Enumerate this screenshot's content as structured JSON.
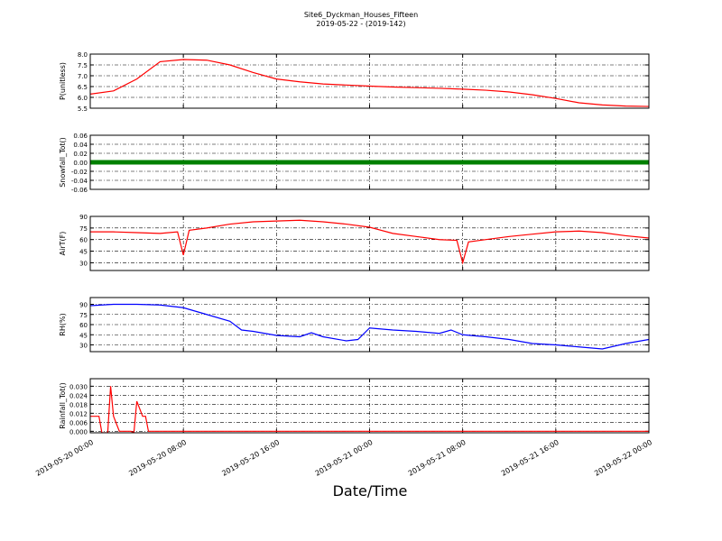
{
  "figure": {
    "title": "Site6_Dyckman_Houses_Fifteen",
    "subtitle": "2019-05-22 - (2019-142)",
    "xlabel": "Date/Time",
    "xlim": [
      "2019-05-20 00:00",
      "2019-05-22 00:00"
    ],
    "xticks": [
      "2019-05-20 00:00",
      "2019-05-20 08:00",
      "2019-05-20 16:00",
      "2019-05-21 00:00",
      "2019-05-21 08:00",
      "2019-05-21 16:00",
      "2019-05-22 00:00"
    ]
  },
  "chart_data": [
    {
      "type": "line",
      "ylabel": "P(unitless)",
      "color": "#ff0000",
      "x": [
        "2019-05-20 00:00",
        "2019-05-20 02:00",
        "2019-05-20 04:00",
        "2019-05-20 06:00",
        "2019-05-20 08:00",
        "2019-05-20 10:00",
        "2019-05-20 12:00",
        "2019-05-20 14:00",
        "2019-05-20 16:00",
        "2019-05-20 18:00",
        "2019-05-20 20:00",
        "2019-05-20 22:00",
        "2019-05-21 00:00",
        "2019-05-21 02:00",
        "2019-05-21 04:00",
        "2019-05-21 06:00",
        "2019-05-21 08:00",
        "2019-05-21 10:00",
        "2019-05-21 12:00",
        "2019-05-21 14:00",
        "2019-05-21 16:00",
        "2019-05-21 18:00",
        "2019-05-21 20:00",
        "2019-05-21 22:00",
        "2019-05-22 00:00"
      ],
      "values": [
        6.15,
        6.3,
        6.85,
        7.65,
        7.75,
        7.72,
        7.5,
        7.15,
        6.85,
        6.72,
        6.62,
        6.57,
        6.52,
        6.48,
        6.45,
        6.42,
        6.38,
        6.33,
        6.25,
        6.12,
        5.95,
        5.75,
        5.65,
        5.6,
        5.58
      ],
      "ylim": [
        5.5,
        8.0
      ],
      "yticks": [
        5.5,
        {
          "value": 6,
          "label": "6.0"
        },
        6.5,
        {
          "value": 7,
          "label": "7.0"
        },
        7.5,
        {
          "value": 8,
          "label": "8.0"
        }
      ]
    },
    {
      "type": "line",
      "ylabel": "Snowfall_Tot()",
      "color": "#008000",
      "x": [
        "2019-05-20 00:00",
        "2019-05-20 08:00",
        "2019-05-20 16:00",
        "2019-05-21 00:00",
        "2019-05-21 08:00",
        "2019-05-21 16:00",
        "2019-05-22 00:00"
      ],
      "values": [
        0,
        0,
        0,
        0,
        0,
        0,
        0
      ],
      "ylim": [
        -0.06,
        0.06
      ],
      "yticks": [
        -0.06,
        -0.04,
        -0.02,
        {
          "value": 0,
          "label": "0.00"
        },
        0.02,
        0.04,
        0.06
      ]
    },
    {
      "type": "line",
      "ylabel": "AirT(F)",
      "color": "#ff0000",
      "x": [
        "2019-05-20 00:00",
        "2019-05-20 02:00",
        "2019-05-20 04:00",
        "2019-05-20 06:00",
        "2019-05-20 07:30",
        "2019-05-20 08:00",
        "2019-05-20 08:30",
        "2019-05-20 10:00",
        "2019-05-20 12:00",
        "2019-05-20 14:00",
        "2019-05-20 16:00",
        "2019-05-20 18:00",
        "2019-05-20 20:00",
        "2019-05-20 22:00",
        "2019-05-21 00:00",
        "2019-05-21 02:00",
        "2019-05-21 04:00",
        "2019-05-21 06:00",
        "2019-05-21 07:30",
        "2019-05-21 08:00",
        "2019-05-21 08:30",
        "2019-05-21 10:00",
        "2019-05-21 12:00",
        "2019-05-21 14:00",
        "2019-05-21 16:00",
        "2019-05-21 18:00",
        "2019-05-21 20:00",
        "2019-05-21 22:00",
        "2019-05-22 00:00"
      ],
      "values": [
        70,
        70,
        69,
        68,
        70,
        40,
        72,
        75,
        80,
        83,
        84,
        85,
        83,
        80,
        76,
        68,
        64,
        60,
        59,
        30,
        57,
        60,
        64,
        67,
        70,
        71,
        69,
        65,
        62
      ],
      "ylim": [
        20,
        90
      ],
      "yticks": [
        30,
        45,
        60,
        75,
        90
      ]
    },
    {
      "type": "line",
      "ylabel": "RH(%)",
      "color": "#0000ff",
      "x": [
        "2019-05-20 00:00",
        "2019-05-20 02:00",
        "2019-05-20 04:00",
        "2019-05-20 06:00",
        "2019-05-20 08:00",
        "2019-05-20 10:00",
        "2019-05-20 12:00",
        "2019-05-20 13:00",
        "2019-05-20 14:00",
        "2019-05-20 16:00",
        "2019-05-20 18:00",
        "2019-05-20 19:00",
        "2019-05-20 20:00",
        "2019-05-20 22:00",
        "2019-05-20 23:00",
        "2019-05-21 00:00",
        "2019-05-21 02:00",
        "2019-05-21 04:00",
        "2019-05-21 06:00",
        "2019-05-21 07:00",
        "2019-05-21 08:00",
        "2019-05-21 10:00",
        "2019-05-21 12:00",
        "2019-05-21 14:00",
        "2019-05-21 16:00",
        "2019-05-21 18:00",
        "2019-05-21 20:00",
        "2019-05-21 22:00",
        "2019-05-22 00:00"
      ],
      "values": [
        88,
        90,
        90,
        89,
        85,
        75,
        65,
        52,
        50,
        44,
        42,
        48,
        42,
        36,
        38,
        55,
        52,
        50,
        47,
        52,
        45,
        42,
        38,
        32,
        30,
        27,
        24,
        32,
        38
      ],
      "ylim": [
        20,
        100
      ],
      "yticks": [
        30,
        45,
        60,
        75,
        90
      ]
    },
    {
      "type": "line",
      "ylabel": "Rainfall_Tot()",
      "color": "#ff0000",
      "x": [
        "2019-05-20 00:00",
        "2019-05-20 00:45",
        "2019-05-20 01:00",
        "2019-05-20 01:30",
        "2019-05-20 01:45",
        "2019-05-20 02:00",
        "2019-05-20 02:30",
        "2019-05-20 03:30",
        "2019-05-20 03:45",
        "2019-05-20 04:00",
        "2019-05-20 04:30",
        "2019-05-20 04:45",
        "2019-05-20 05:00",
        "2019-05-22 00:00"
      ],
      "values": [
        0.01,
        0.01,
        -0.001,
        -0.001,
        0.03,
        0.01,
        0,
        0,
        -0.001,
        0.02,
        0.01,
        0.01,
        0,
        0
      ],
      "ylim": [
        -0.001,
        0.035
      ],
      "yticks": [
        {
          "value": 0,
          "label": "0.000"
        },
        0.006,
        0.012,
        0.018,
        0.024,
        {
          "value": 0.03,
          "label": "0.030"
        }
      ]
    }
  ]
}
